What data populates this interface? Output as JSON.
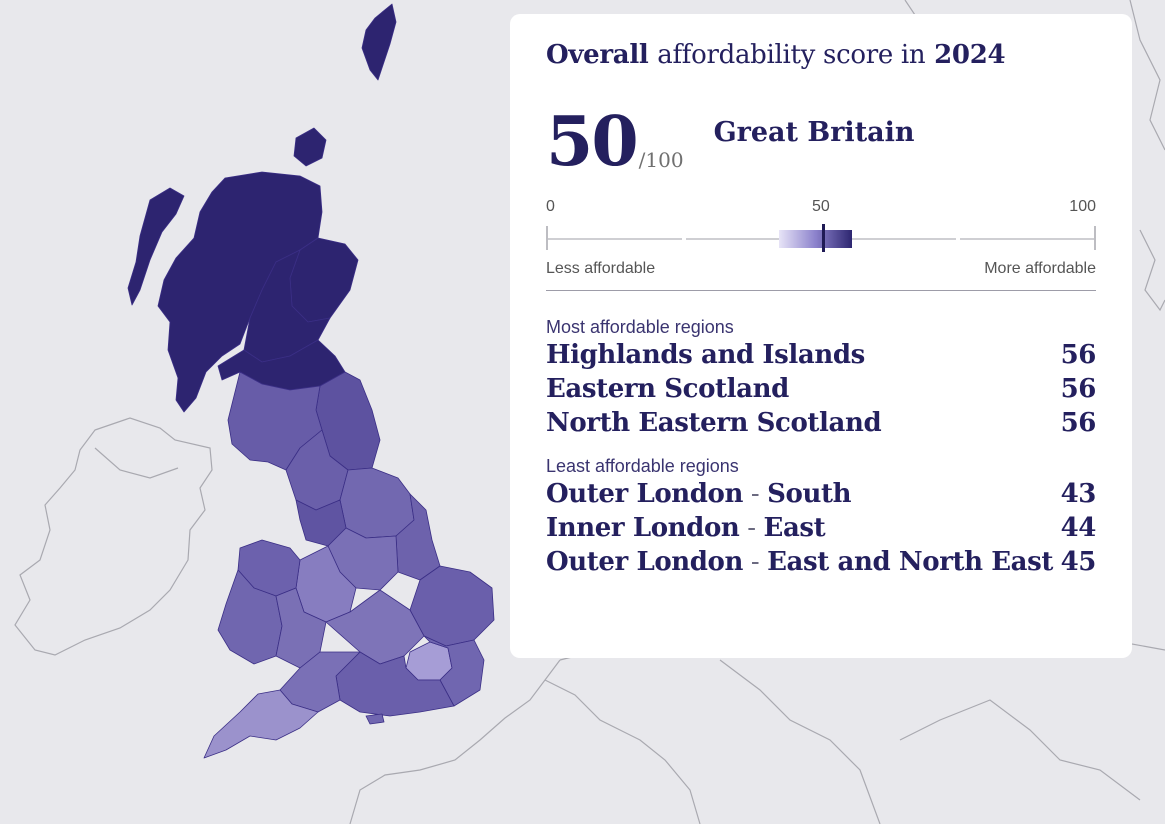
{
  "map": {
    "fill_high": "#2d2470",
    "fill_mid": "#6f64ae",
    "fill_low": "#9e95d0",
    "outline_color": "#a9a9b0"
  },
  "card": {
    "title_bold_1": "Overall",
    "title_plain": "affordability score in",
    "title_bold_2": "2024",
    "score": "50",
    "score_max": "/100",
    "place": "Great Britain",
    "scale": {
      "min_label": "0",
      "mid_label": "50",
      "max_label": "100",
      "left_caption": "Less affordable",
      "right_caption": "More affordable",
      "marker_value": 50,
      "range_low": 43,
      "range_high": 56
    },
    "most_label": "Most affordable regions",
    "most": [
      {
        "name": "Highlands and Islands",
        "score": "56"
      },
      {
        "name": "Eastern Scotland",
        "score": "56"
      },
      {
        "name": "North Eastern Scotland",
        "score": "56"
      }
    ],
    "least_label": "Least affordable regions",
    "least": [
      {
        "name_a": "Outer London",
        "sep": " - ",
        "name_b": "South",
        "score": "43"
      },
      {
        "name_a": "Inner London",
        "sep": " - ",
        "name_b": "East",
        "score": "44"
      },
      {
        "name_a": "Outer London",
        "sep": " - ",
        "name_b": "East and North East",
        "score": "45"
      }
    ]
  }
}
